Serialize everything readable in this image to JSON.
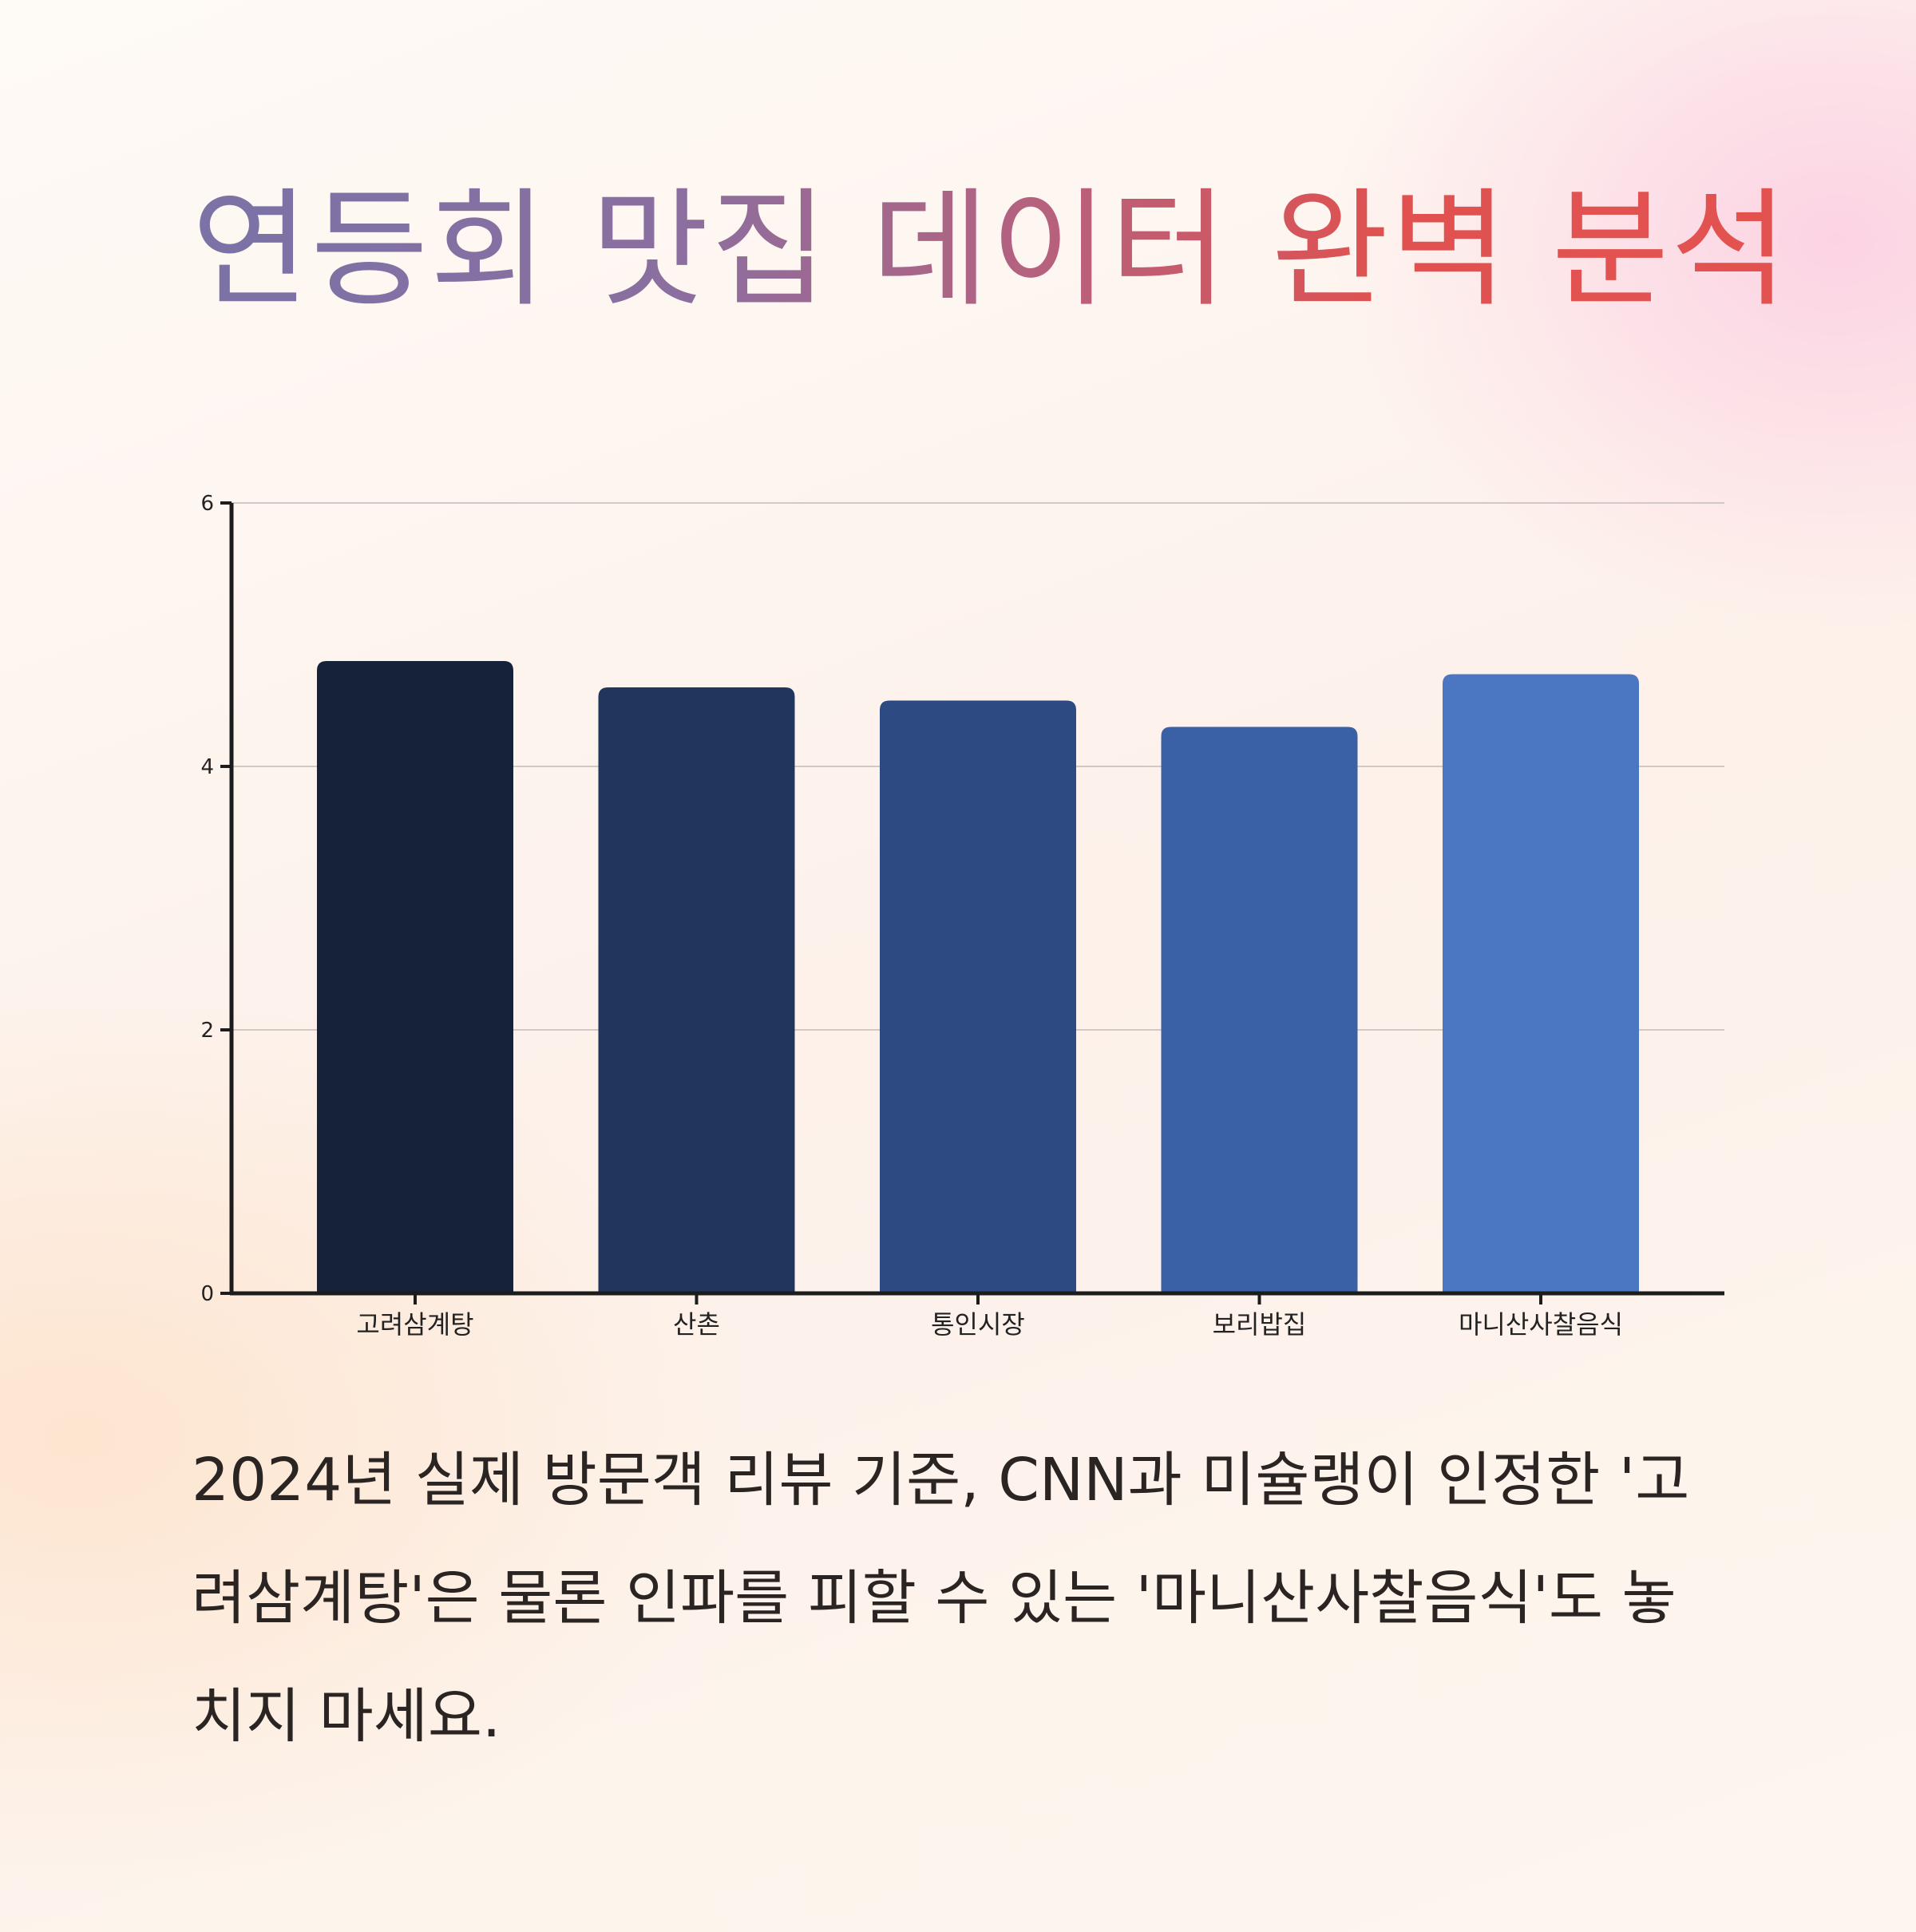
{
  "title": "연등회 맛집 데이터 완벽 분석",
  "description": "2024년 실제 방문객 리뷰 기준, CNN과 미슐랭이 인정한 '고려삼계탕'은 물론 인파를 피할 수 있는 '마니산사찰음식'도 놓치지 마세요.",
  "colors": {
    "title_gradient": [
      "#7b72a6",
      "#e25350"
    ],
    "bars": [
      "#16213a",
      "#22365d",
      "#2d4a82",
      "#3a60a6",
      "#4b77c2"
    ],
    "axis": "#1c1c1c",
    "grid": "#d2c8c6"
  },
  "chart_data": {
    "type": "bar",
    "categories": [
      "고려삼계탕",
      "산촌",
      "통인시장",
      "보리밥집",
      "마니산사찰음식"
    ],
    "values": [
      4.8,
      4.6,
      4.5,
      4.3,
      4.7
    ],
    "title": "",
    "xlabel": "",
    "ylabel": "",
    "ylim": [
      0,
      6
    ],
    "yticks": [
      0,
      2,
      4,
      6
    ],
    "grid": true
  }
}
